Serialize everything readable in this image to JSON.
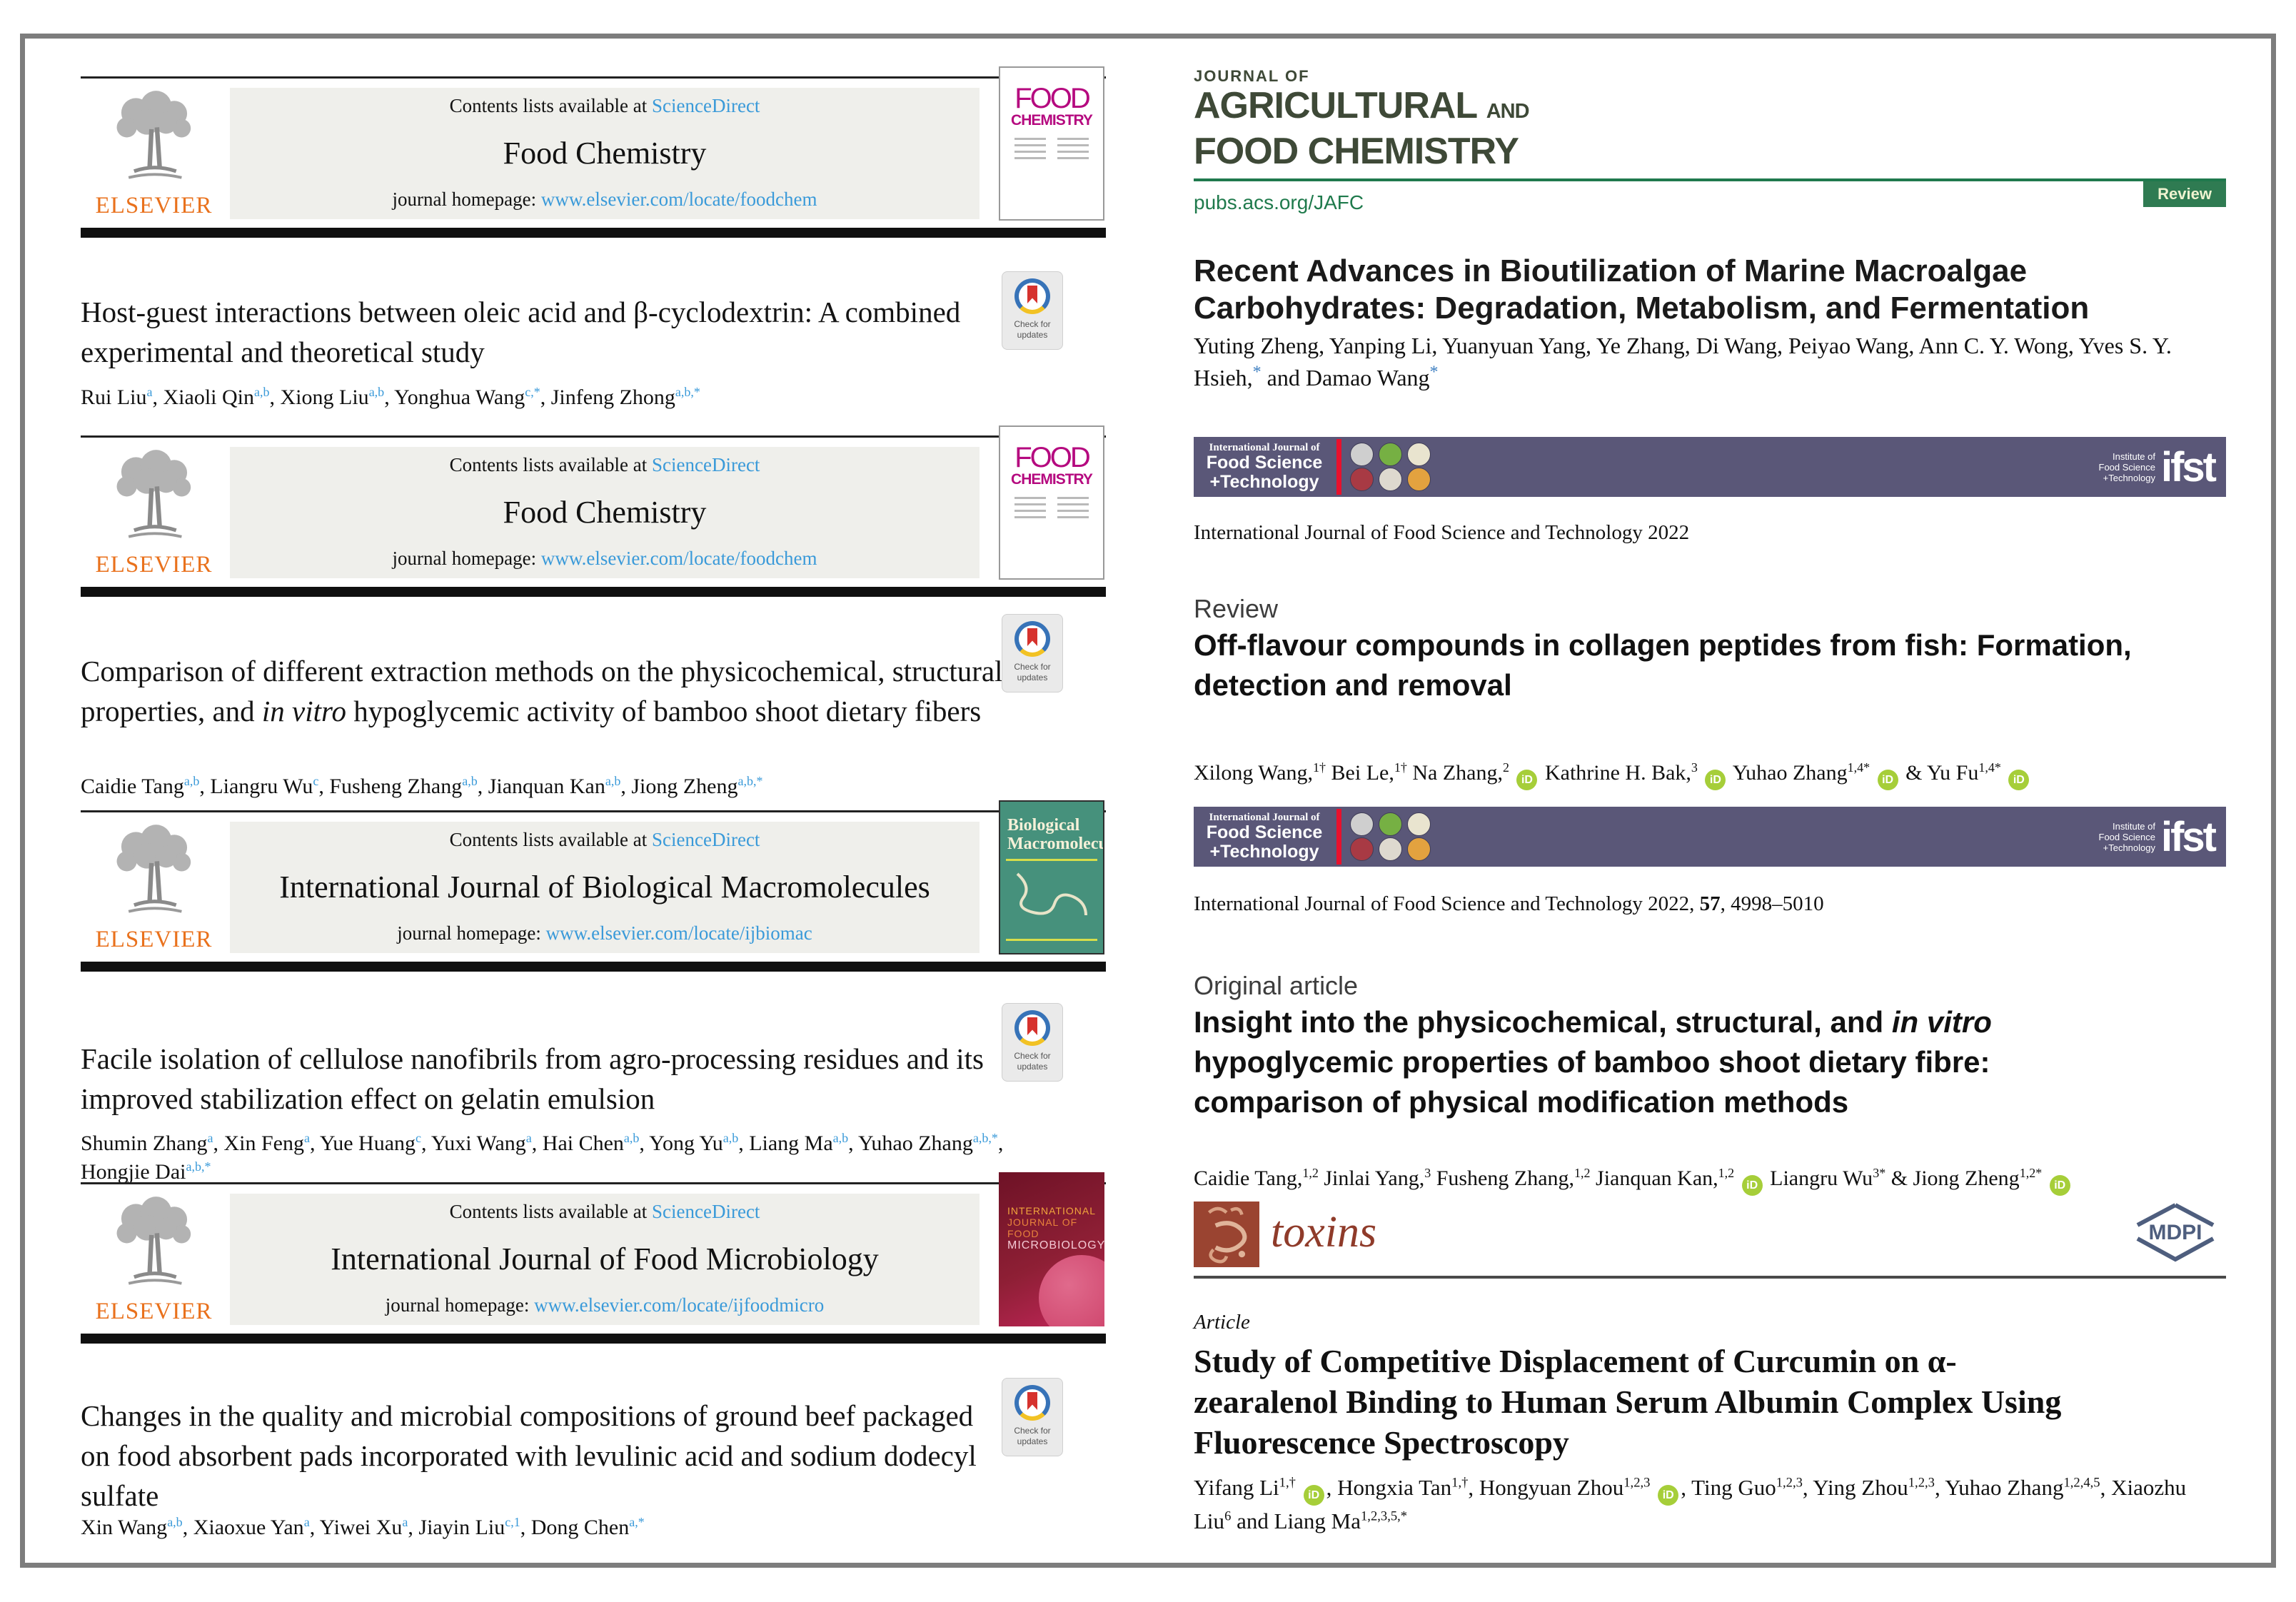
{
  "badge": {
    "check_updates_line1": "Check for",
    "check_updates_line2": "updates"
  },
  "elsevier": {
    "publisher": "ELSEVIER",
    "contents_line": "Contents lists available at",
    "sciencedirect": "ScienceDirect",
    "homepage_label": "journal homepage:"
  },
  "left": {
    "headers": [
      {
        "journal": "Food Chemistry",
        "homepage_url": "www.elsevier.com/locate/foodchem",
        "cover_line1": "FOOD",
        "cover_line2": "CHEMISTRY"
      },
      {
        "journal": "Food Chemistry",
        "homepage_url": "www.elsevier.com/locate/foodchem",
        "cover_line1": "FOOD",
        "cover_line2": "CHEMISTRY"
      },
      {
        "journal": "International Journal of Biological Macromolecules",
        "homepage_url": "www.elsevier.com/locate/ijbiomac",
        "cover_line1": "Biological",
        "cover_line2": "Macromolecules"
      },
      {
        "journal": "International Journal of Food Microbiology",
        "homepage_url": "www.elsevier.com/locate/ijfoodmicro",
        "cover_line1": "INTERNATIONAL",
        "cover_line2": "JOURNAL OF FOOD",
        "cover_line3": "MICROBIOLOGY"
      }
    ],
    "articles": [
      {
        "title": "Host-guest interactions between oleic acid and β-cyclodextrin: A combined experimental and theoretical study",
        "authors": "Rui Liu^{a}, Xiaoli Qin^{a,b}, Xiong Liu^{a,b}, Yonghua Wang^{c,*}, Jinfeng Zhong^{a,b,*}"
      },
      {
        "title": "Comparison of different extraction methods on the physicochemical, structural properties, and _in vitro_ hypoglycemic activity of bamboo shoot dietary fibers",
        "authors": "Caidie Tang^{a,b}, Liangru Wu^{c}, Fusheng Zhang^{a,b}, Jianquan Kan^{a,b}, Jiong Zheng^{a,b,*}"
      },
      {
        "title": "Facile isolation of cellulose nanofibrils from agro-processing residues and its improved stabilization effect on gelatin emulsion",
        "authors": "Shumin Zhang^{a}, Xin Feng^{a}, Yue Huang^{c}, Yuxi Wang^{a}, Hai Chen^{a,b}, Yong Yu^{a,b}, Liang Ma^{a,b}, Yuhao Zhang^{a,b,*}, Hongjie Dai^{a,b,*}"
      },
      {
        "title": "Changes in the quality and microbial compositions of ground beef packaged on food absorbent pads incorporated with levulinic acid and sodium dodecyl sulfate",
        "authors": "Xin Wang^{a,b}, Xiaoxue Yan^{a}, Yiwei Xu^{a}, Jiayin Liu^{c,1}, Dong Chen^{a,*}"
      }
    ]
  },
  "right": {
    "jafc": {
      "journal_of": "JOURNAL OF",
      "line1": "AGRICULTURAL",
      "and": "AND",
      "line2": "FOOD CHEMISTRY",
      "url": "pubs.acs.org/JAFC",
      "badge": "Review",
      "title": "Recent Advances in Bioutilization of Marine Macroalgae Carbohydrates: Degradation, Metabolism, and Fermentation",
      "authors": "Yuting Zheng, Yanping Li, Yuanyuan Yang, Ye Zhang, Di Wang, Peiyao Wang, Ann C. Y. Wong, Yves S. Y. Hsieh,^{*} and Damao Wang^{*}"
    },
    "ijfst_banner": {
      "small": "International Journal of",
      "bold1": "Food Science",
      "bold2": "+Technology",
      "inst1": "Institute of",
      "inst2": "Food Science",
      "inst3": "+Technology",
      "logo": "ifst"
    },
    "citation1": "International Journal of Food Science and Technology 2022",
    "review": {
      "label": "Review",
      "title": "Off-flavour compounds in collagen peptides from fish: Formation, detection and removal",
      "authors": "Xilong Wang,^{1†} Bei Le,^{1†} Na Zhang,^{2} [ID] Kathrine H. Bak,^{3} [ID] Yuhao Zhang^{1,4*} [ID] & Yu Fu^{1,4*} [ID]"
    },
    "citation2": "International Journal of Food Science and Technology 2022, **57**, 4998–5010",
    "original": {
      "label": "Original article",
      "title": "Insight into the physicochemical, structural, and _in vitro_ hypoglycemic properties of bamboo shoot dietary fibre: comparison of physical modification methods",
      "authors": "Caidie Tang,^{1,2} Jinlai Yang,^{3} Fusheng Zhang,^{1,2} Jianquan Kan,^{1,2} [ID] Liangru Wu^{3*} & Jiong Zheng^{1,2*} [ID]"
    },
    "toxins": {
      "logo": "toxins",
      "mdpi": "MDPI",
      "label": "Article",
      "title": "Study of Competitive Displacement of Curcumin on α-zearalenol Binding to Human Serum Albumin Complex Using Fluorescence Spectroscopy",
      "authors": "Yifang Li^{1,†} [ID], Hongxia Tan^{1,†}, Hongyuan Zhou^{1,2,3} [ID], Ting Guo^{1,2,3}, Ying Zhou^{1,2,3}, Yuhao Zhang^{1,2,4,5}, Xiaozhu Liu^{6} and Liang Ma^{1,2,3,5,*}"
    }
  },
  "colors": {
    "elsevier_orange": "#E9711C",
    "link_blue": "#3A9AD9",
    "foodchem_magenta": "#B5097F",
    "biomac_green": "#46917C",
    "micro_maroon": "#7E1C30",
    "jafc_dark_olive": "#3E4937",
    "jafc_green": "#20794D",
    "review_badge_green": "#2F7B52",
    "ijfst_purple": "#5A5778",
    "ijfst_red": "#E8112D",
    "orcid_green": "#A6CE39",
    "toxins_brick": "#9A4431",
    "mdpi_blue": "#4E5E7E"
  }
}
